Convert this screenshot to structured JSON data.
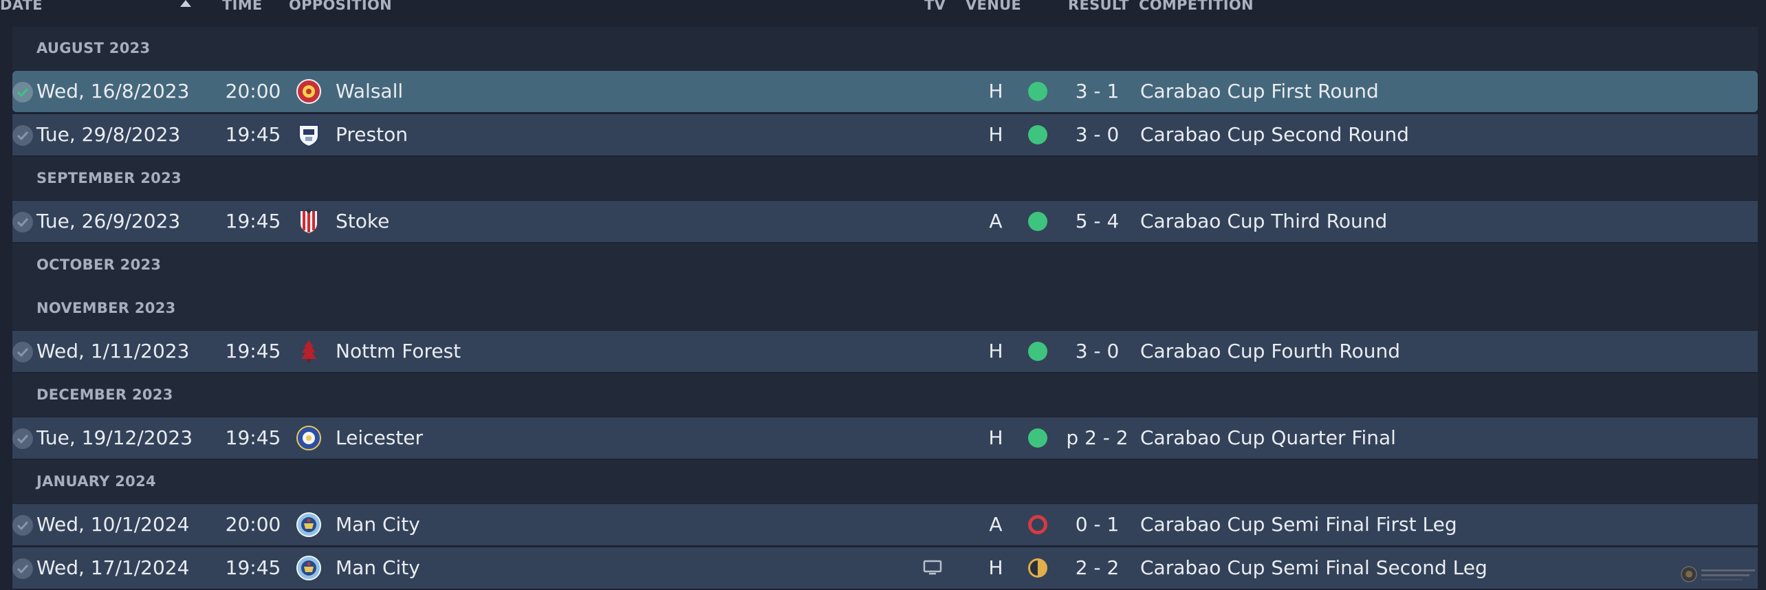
{
  "header": {
    "date": "DATE",
    "time": "TIME",
    "opposition": "OPPOSITION",
    "tv": "TV",
    "venue": "VENUE",
    "result": "RESULT",
    "competition": "COMPETITION"
  },
  "groups": [
    {
      "label": "AUGUST 2023",
      "matches": [
        {
          "date": "Wed, 16/8/2023",
          "time": "20:00",
          "opposition": "Walsall",
          "venue": "H",
          "outcome": "win",
          "result": "3 - 1",
          "competition": "Carabao Cup First Round",
          "selected": true
        },
        {
          "date": "Tue, 29/8/2023",
          "time": "19:45",
          "opposition": "Preston",
          "venue": "H",
          "outcome": "win",
          "result": "3 - 0",
          "competition": "Carabao Cup Second Round"
        }
      ]
    },
    {
      "label": "SEPTEMBER 2023",
      "matches": [
        {
          "date": "Tue, 26/9/2023",
          "time": "19:45",
          "opposition": "Stoke",
          "venue": "A",
          "outcome": "win",
          "result": "5 - 4",
          "competition": "Carabao Cup Third Round"
        }
      ]
    },
    {
      "label": "OCTOBER 2023",
      "matches": []
    },
    {
      "label": "NOVEMBER 2023",
      "matches": [
        {
          "date": "Wed, 1/11/2023",
          "time": "19:45",
          "opposition": "Nottm Forest",
          "venue": "H",
          "outcome": "win",
          "result": "3 - 0",
          "competition": "Carabao Cup Fourth Round"
        }
      ]
    },
    {
      "label": "DECEMBER 2023",
      "matches": [
        {
          "date": "Tue, 19/12/2023",
          "time": "19:45",
          "opposition": "Leicester",
          "venue": "H",
          "outcome": "win",
          "result": "p 2 - 2",
          "competition": "Carabao Cup Quarter Final"
        }
      ]
    },
    {
      "label": "JANUARY 2024",
      "matches": [
        {
          "date": "Wed, 10/1/2024",
          "time": "20:00",
          "opposition": "Man City",
          "venue": "A",
          "outcome": "loss",
          "result": "0 - 1",
          "competition": "Carabao Cup Semi Final First Leg"
        },
        {
          "date": "Wed, 17/1/2024",
          "time": "19:45",
          "opposition": "Man City",
          "venue": "H",
          "outcome": "draw",
          "result": "2 - 2",
          "competition": "Carabao Cup Semi Final Second Leg",
          "tv": true
        }
      ]
    }
  ],
  "colors": {
    "win": "#3ec47e",
    "loss": "#d63a44",
    "draw": "#e2b04a",
    "selected_row": "#45677c",
    "row": "#334259",
    "group": "#222a39"
  },
  "icons": {
    "check": "check-icon",
    "tv": "tv-icon",
    "sort": "sort-ascending-icon"
  }
}
